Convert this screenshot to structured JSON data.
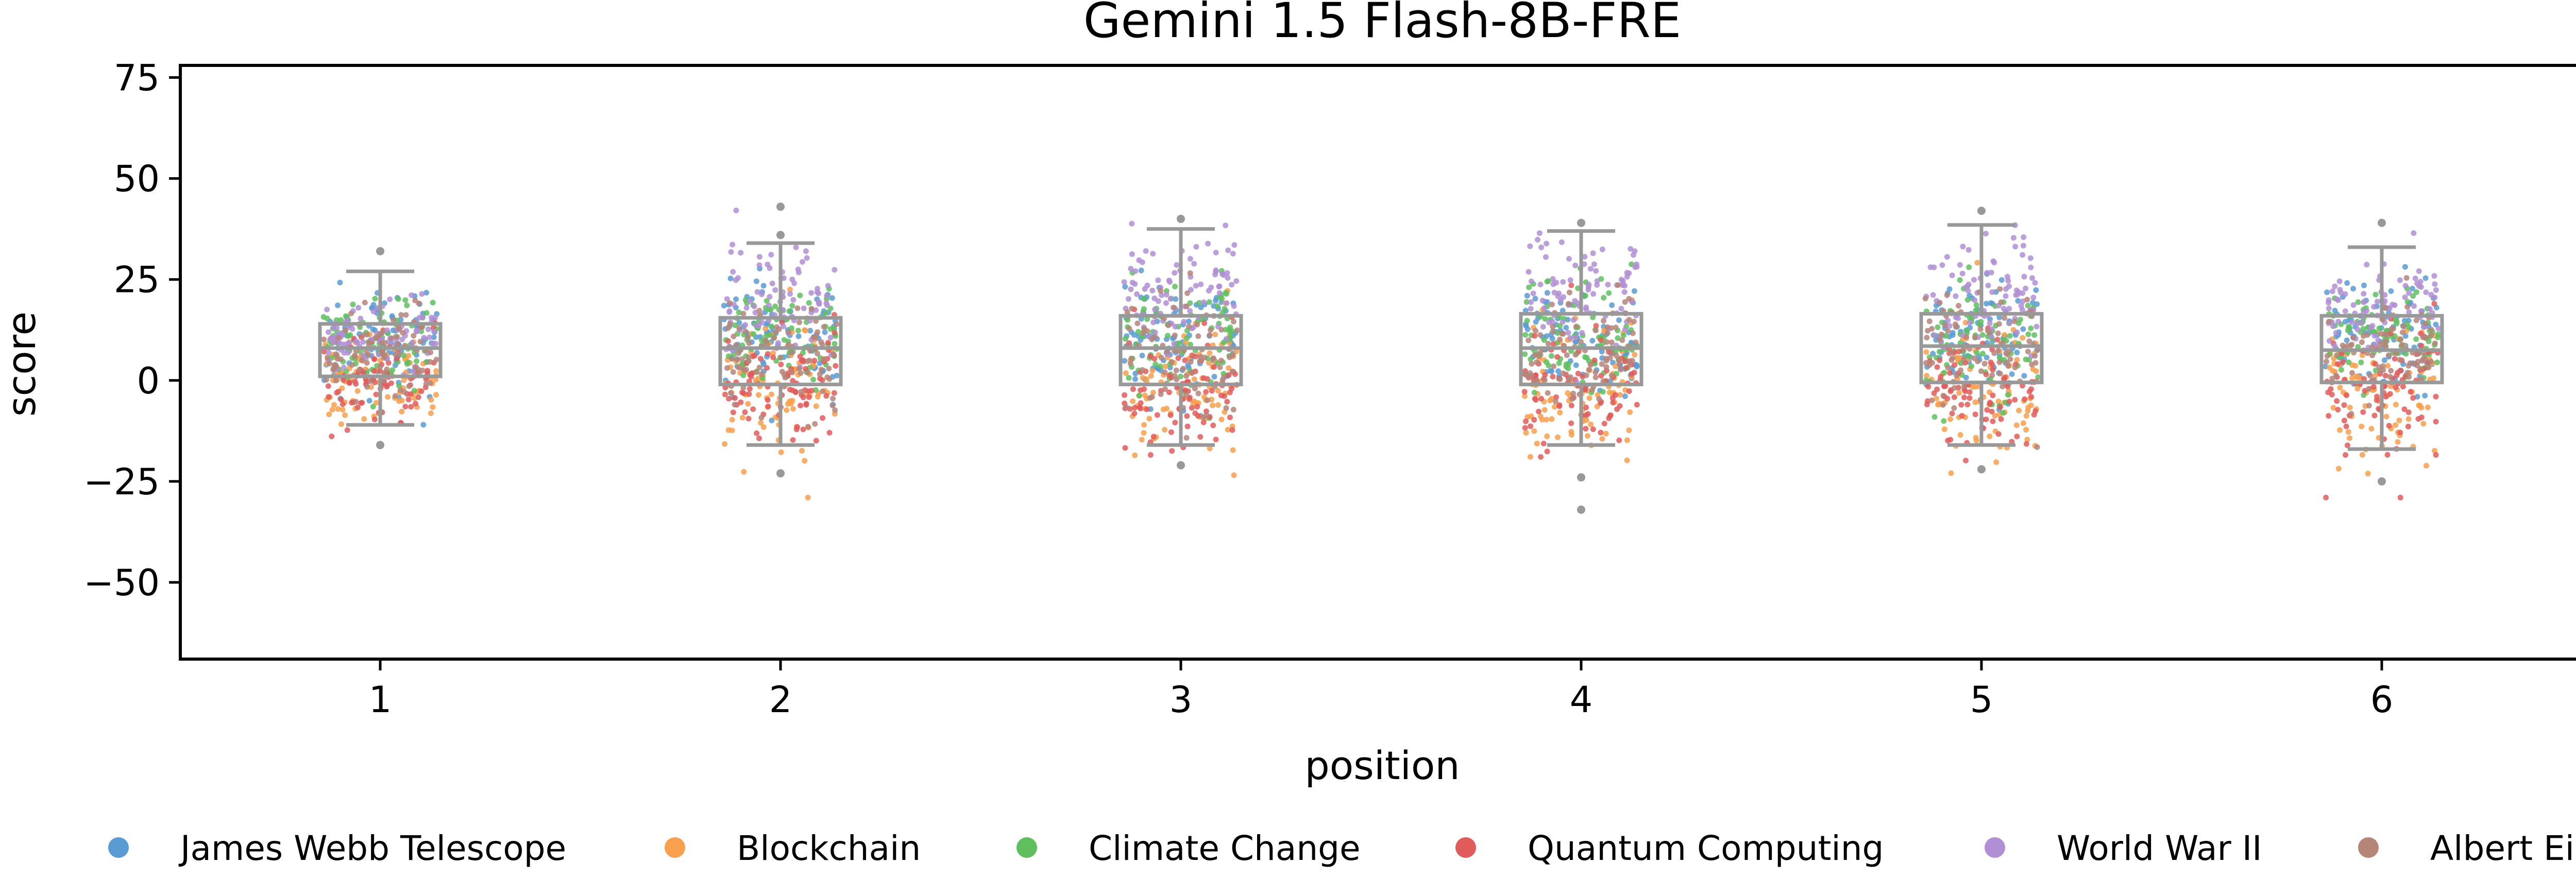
{
  "chart_data": {
    "type": "scatter",
    "title": "Gemini 1.5 Flash-8B-FRE",
    "xlabel": "position",
    "ylabel": "score",
    "categories": [
      "1",
      "2",
      "3",
      "4",
      "5",
      "6"
    ],
    "ylim": [
      -69,
      78
    ],
    "yticks": [
      -50,
      -25,
      0,
      25,
      50,
      75
    ],
    "grid": false,
    "legend_position": "bottom",
    "overlay": "boxplot (gray) over jittered strip points",
    "box_color": "#999999",
    "boxes": [
      {
        "position": "1",
        "q1": 1,
        "median": 8,
        "q3": 14,
        "whisker_low": -11,
        "whisker_high": 27,
        "outliers": [
          32,
          -16
        ]
      },
      {
        "position": "2",
        "q1": -1,
        "median": 8,
        "q3": 15.5,
        "whisker_low": -16,
        "whisker_high": 34,
        "outliers": [
          36,
          43,
          -23
        ]
      },
      {
        "position": "3",
        "q1": -1,
        "median": 8,
        "q3": 16,
        "whisker_low": -16,
        "whisker_high": 37.5,
        "outliers": [
          40,
          -21
        ]
      },
      {
        "position": "4",
        "q1": -1,
        "median": 8,
        "q3": 16.5,
        "whisker_low": -16,
        "whisker_high": 37,
        "outliers": [
          39,
          -24,
          -32
        ]
      },
      {
        "position": "5",
        "q1": -0.5,
        "median": 8.5,
        "q3": 16.5,
        "whisker_low": -16,
        "whisker_high": 38.5,
        "outliers": [
          42,
          -22
        ]
      },
      {
        "position": "6",
        "q1": -0.5,
        "median": 7.5,
        "q3": 16,
        "whisker_low": -17,
        "whisker_high": 33,
        "outliers": [
          39,
          -25
        ]
      }
    ],
    "series": [
      {
        "name": "James Webb Telescope",
        "color": "#5a9bd4",
        "mean_by_position": [
          10,
          11,
          11,
          11,
          11,
          11
        ],
        "sd_by_position": [
          6,
          7,
          7,
          7,
          7,
          7
        ]
      },
      {
        "name": "Blockchain",
        "color": "#f7a04d",
        "mean_by_position": [
          0,
          -1,
          -2,
          -2,
          -2,
          -2
        ],
        "sd_by_position": [
          6,
          8,
          8,
          9,
          8,
          8
        ]
      },
      {
        "name": "Climate Change",
        "color": "#5fbf5f",
        "mean_by_position": [
          9,
          10,
          10,
          10,
          10,
          10
        ],
        "sd_by_position": [
          5,
          6,
          7,
          7,
          7,
          6
        ]
      },
      {
        "name": "Quantum Computing",
        "color": "#e05c5c",
        "mean_by_position": [
          1,
          -2,
          -3,
          -3,
          -3,
          -3
        ],
        "sd_by_position": [
          6,
          7,
          8,
          8,
          8,
          8
        ]
      },
      {
        "name": "World War II",
        "color": "#b08fd4",
        "mean_by_position": [
          12,
          20,
          22,
          22,
          22,
          19
        ],
        "sd_by_position": [
          5,
          7,
          7,
          7,
          7,
          6
        ]
      },
      {
        "name": "Albert Einstein",
        "color": "#b5857a",
        "mean_by_position": [
          6,
          7,
          7,
          7,
          7,
          7
        ],
        "sd_by_position": [
          5,
          6,
          7,
          7,
          7,
          6
        ]
      }
    ]
  }
}
